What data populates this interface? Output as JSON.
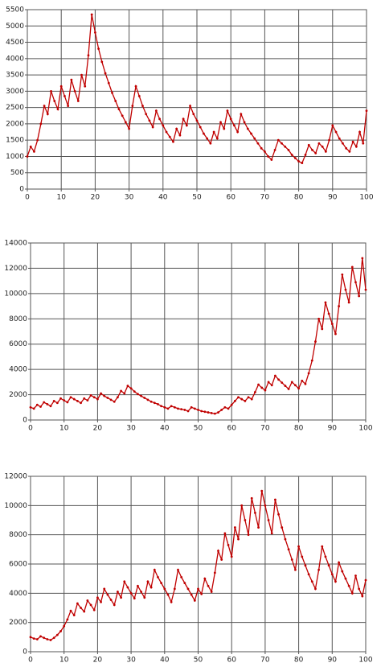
{
  "chart_data": [
    {
      "type": "line",
      "color": "#c00000",
      "grid": true,
      "x": [
        0,
        1,
        2,
        3,
        4,
        5,
        6,
        7,
        8,
        9,
        10,
        11,
        12,
        13,
        14,
        15,
        16,
        17,
        18,
        19,
        20,
        21,
        22,
        23,
        24,
        25,
        26,
        27,
        28,
        29,
        30,
        31,
        32,
        33,
        34,
        35,
        36,
        37,
        38,
        39,
        40,
        41,
        42,
        43,
        44,
        45,
        46,
        47,
        48,
        49,
        50,
        51,
        52,
        53,
        54,
        55,
        56,
        57,
        58,
        59,
        60,
        61,
        62,
        63,
        64,
        65,
        66,
        67,
        68,
        69,
        70,
        71,
        72,
        73,
        74,
        75,
        76,
        77,
        78,
        79,
        80,
        81,
        82,
        83,
        84,
        85,
        86,
        87,
        88,
        89,
        90,
        91,
        92,
        93,
        94,
        95,
        96,
        97,
        98,
        99,
        100
      ],
      "values": [
        1000,
        1300,
        1150,
        1500,
        2000,
        2550,
        2300,
        3000,
        2700,
        2450,
        3150,
        2850,
        2550,
        3350,
        3000,
        2700,
        3500,
        3150,
        4100,
        5350,
        4800,
        4300,
        3900,
        3550,
        3250,
        2950,
        2700,
        2450,
        2250,
        2050,
        1850,
        2550,
        3150,
        2850,
        2550,
        2300,
        2100,
        1900,
        2400,
        2150,
        1950,
        1750,
        1600,
        1450,
        1850,
        1650,
        2150,
        1950,
        2550,
        2300,
        2100,
        1900,
        1700,
        1550,
        1400,
        1750,
        1550,
        2050,
        1850,
        2400,
        2150,
        1950,
        1750,
        2300,
        2050,
        1850,
        1700,
        1550,
        1400,
        1250,
        1150,
        1000,
        900,
        1200,
        1500,
        1400,
        1300,
        1200,
        1050,
        950,
        850,
        800,
        1050,
        1350,
        1200,
        1100,
        1400,
        1300,
        1150,
        1500,
        1950,
        1750,
        1550,
        1400,
        1250,
        1150,
        1450,
        1300,
        1750,
        1400,
        2400
      ],
      "xlim": [
        0,
        100
      ],
      "xticks": [
        0,
        10,
        20,
        30,
        40,
        50,
        60,
        70,
        80,
        90,
        100
      ],
      "ylim": [
        0,
        5500
      ],
      "yticks": [
        0,
        500,
        1000,
        1500,
        2000,
        2500,
        3000,
        3500,
        4000,
        4500,
        5000,
        5500
      ]
    },
    {
      "type": "line",
      "color": "#c00000",
      "grid": true,
      "x": [
        0,
        1,
        2,
        3,
        4,
        5,
        6,
        7,
        8,
        9,
        10,
        11,
        12,
        13,
        14,
        15,
        16,
        17,
        18,
        19,
        20,
        21,
        22,
        23,
        24,
        25,
        26,
        27,
        28,
        29,
        30,
        31,
        32,
        33,
        34,
        35,
        36,
        37,
        38,
        39,
        40,
        41,
        42,
        43,
        44,
        45,
        46,
        47,
        48,
        49,
        50,
        51,
        52,
        53,
        54,
        55,
        56,
        57,
        58,
        59,
        60,
        61,
        62,
        63,
        64,
        65,
        66,
        67,
        68,
        69,
        70,
        71,
        72,
        73,
        74,
        75,
        76,
        77,
        78,
        79,
        80,
        81,
        82,
        83,
        84,
        85,
        86,
        87,
        88,
        89,
        90,
        91,
        92,
        93,
        94,
        95,
        96,
        97,
        98,
        99,
        100
      ],
      "values": [
        1000,
        900,
        1200,
        1050,
        1400,
        1250,
        1100,
        1500,
        1350,
        1700,
        1550,
        1400,
        1800,
        1650,
        1500,
        1350,
        1700,
        1550,
        1950,
        1800,
        1650,
        2100,
        1900,
        1750,
        1600,
        1450,
        1800,
        2300,
        2100,
        2700,
        2500,
        2250,
        2050,
        1900,
        1750,
        1600,
        1450,
        1350,
        1250,
        1100,
        1000,
        900,
        1100,
        1000,
        900,
        850,
        800,
        700,
        1000,
        900,
        800,
        700,
        650,
        600,
        550,
        500,
        600,
        800,
        1000,
        900,
        1200,
        1500,
        1800,
        1650,
        1500,
        1800,
        1650,
        2200,
        2800,
        2550,
        2350,
        3000,
        2750,
        3500,
        3200,
        2950,
        2700,
        2450,
        3000,
        2750,
        2500,
        3100,
        2850,
        3700,
        4700,
        6200,
        8000,
        7200,
        9300,
        8400,
        7600,
        6800,
        9000,
        11500,
        10300,
        9300,
        12100,
        10900,
        9800,
        12800,
        10300
      ],
      "xlim": [
        0,
        100
      ],
      "xticks": [
        0,
        10,
        20,
        30,
        40,
        50,
        60,
        70,
        80,
        90,
        100
      ],
      "ylim": [
        0,
        14000
      ],
      "yticks": [
        0,
        2000,
        4000,
        6000,
        8000,
        10000,
        12000,
        14000
      ]
    },
    {
      "type": "line",
      "color": "#c00000",
      "grid": true,
      "x": [
        0,
        1,
        2,
        3,
        4,
        5,
        6,
        7,
        8,
        9,
        10,
        11,
        12,
        13,
        14,
        15,
        16,
        17,
        18,
        19,
        20,
        21,
        22,
        23,
        24,
        25,
        26,
        27,
        28,
        29,
        30,
        31,
        32,
        33,
        34,
        35,
        36,
        37,
        38,
        39,
        40,
        41,
        42,
        43,
        44,
        45,
        46,
        47,
        48,
        49,
        50,
        51,
        52,
        53,
        54,
        55,
        56,
        57,
        58,
        59,
        60,
        61,
        62,
        63,
        64,
        65,
        66,
        67,
        68,
        69,
        70,
        71,
        72,
        73,
        74,
        75,
        76,
        77,
        78,
        79,
        80,
        81,
        82,
        83,
        84,
        85,
        86,
        87,
        88,
        89,
        90,
        91,
        92,
        93,
        94,
        95,
        96,
        97,
        98,
        99,
        100
      ],
      "values": [
        1000,
        900,
        850,
        1050,
        950,
        850,
        800,
        950,
        1150,
        1400,
        1750,
        2200,
        2800,
        2500,
        3300,
        3000,
        2750,
        3500,
        3200,
        2850,
        3700,
        3400,
        4300,
        3900,
        3550,
        3200,
        4100,
        3700,
        4800,
        4400,
        4000,
        3650,
        4500,
        4100,
        3700,
        4800,
        4400,
        5600,
        5100,
        4700,
        4300,
        3900,
        3400,
        4300,
        5600,
        5100,
        4700,
        4300,
        3900,
        3500,
        4300,
        3950,
        5000,
        4500,
        4100,
        5400,
        6900,
        6300,
        8100,
        7300,
        6500,
        8500,
        7700,
        10000,
        9000,
        8000,
        10500,
        9500,
        8500,
        11000,
        10000,
        9000,
        8100,
        10400,
        9400,
        8500,
        7700,
        7000,
        6300,
        5600,
        7200,
        6500,
        5900,
        5300,
        4800,
        4300,
        5600,
        7200,
        6500,
        5900,
        5300,
        4800,
        6100,
        5500,
        5000,
        4500,
        4000,
        5200,
        4300,
        3800,
        4900
      ],
      "xlim": [
        0,
        100
      ],
      "xticks": [
        0,
        10,
        20,
        30,
        40,
        50,
        60,
        70,
        80,
        90,
        100
      ],
      "ylim": [
        0,
        12000
      ],
      "yticks": [
        0,
        2000,
        4000,
        6000,
        8000,
        10000,
        12000
      ]
    }
  ]
}
